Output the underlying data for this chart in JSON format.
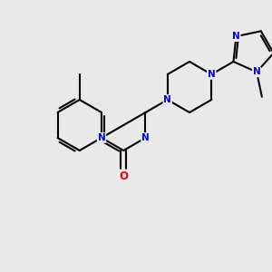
{
  "background_color": "#e9e9e9",
  "bond_color": "#000000",
  "N_color": "#0000ee",
  "O_color": "#ee0000",
  "lw": 1.5,
  "fs": 7.5,
  "xlim": [
    0,
    300
  ],
  "ylim": [
    0,
    300
  ],
  "figsize": [
    3.0,
    3.0
  ],
  "dpi": 100
}
